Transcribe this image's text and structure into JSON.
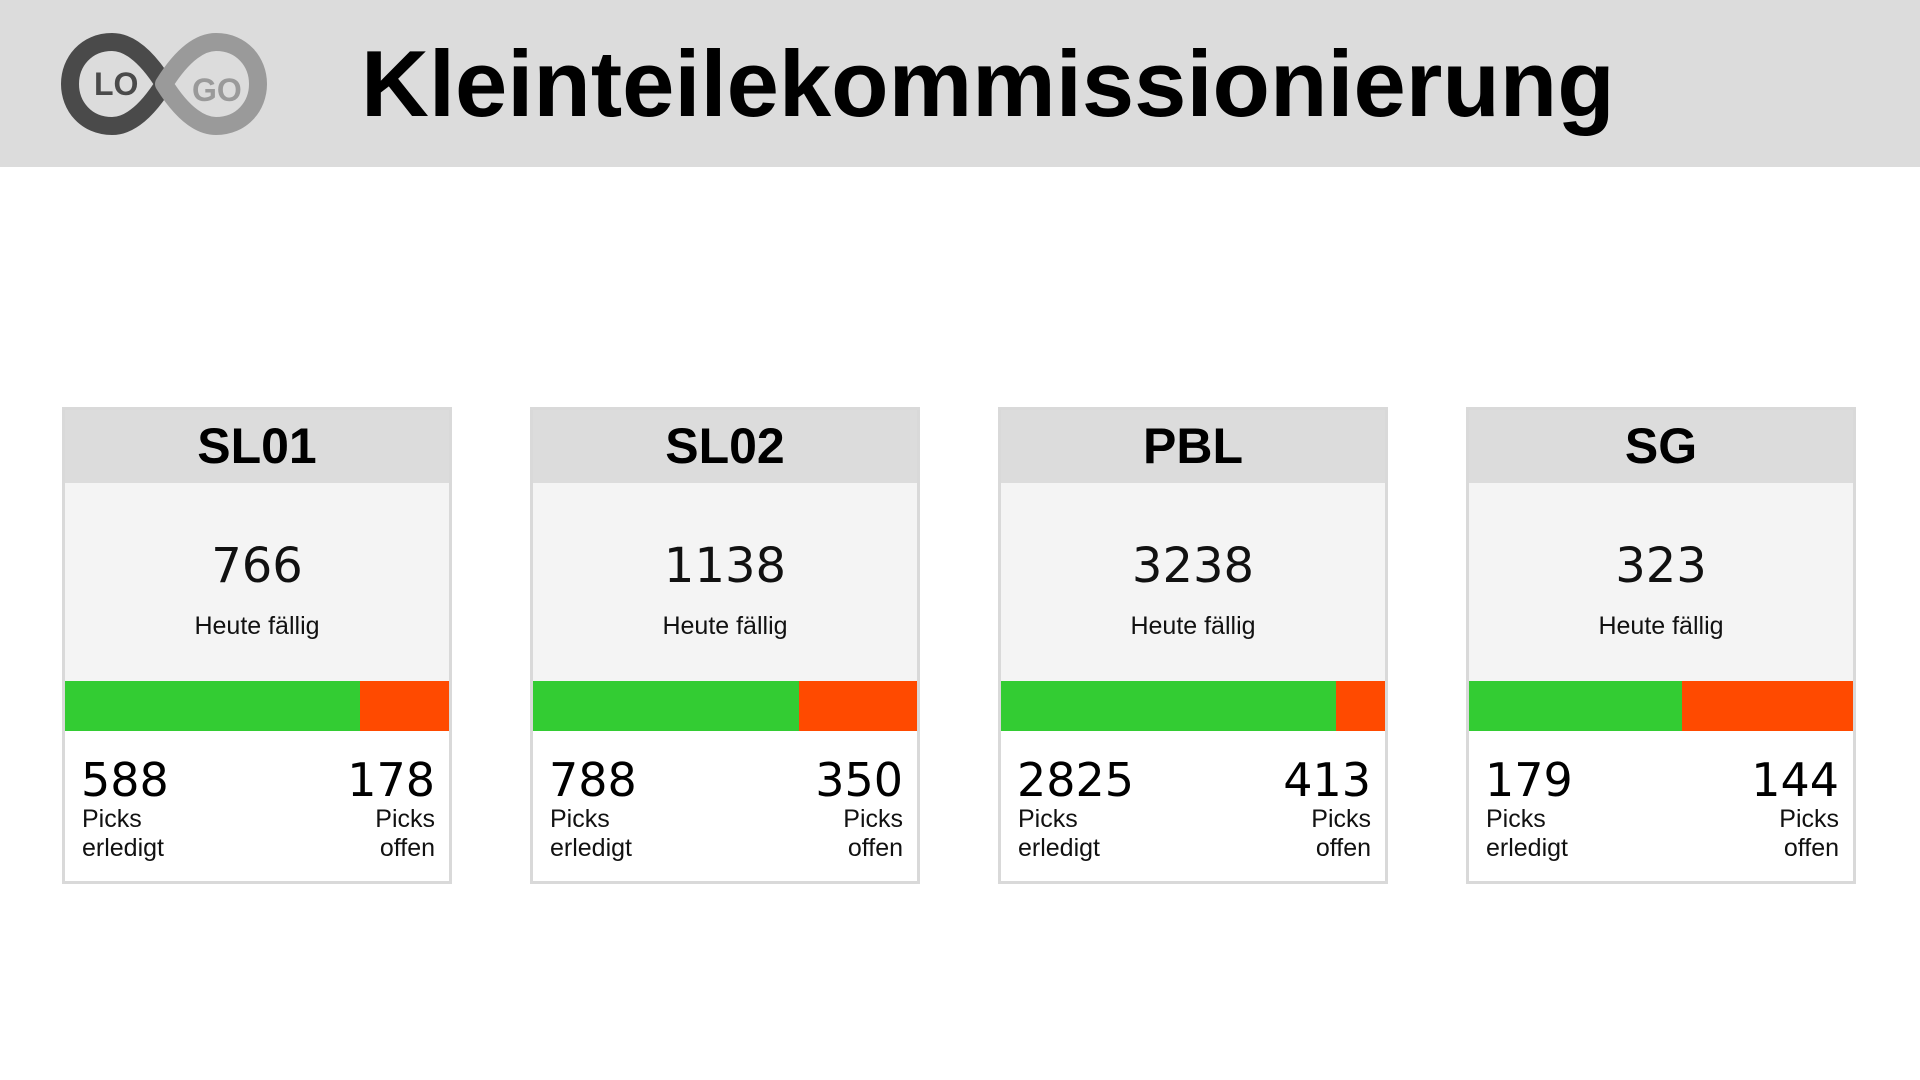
{
  "header": {
    "title": "Kleinteilekommissionierung",
    "logo": {
      "left_text": "LO",
      "right_text": "GO",
      "icon": "infinity-logo-icon"
    }
  },
  "colors": {
    "done": "#33cc33",
    "open": "#ff4a00",
    "header_bg": "#dcdcdc",
    "card_mid_bg": "#f4f4f4"
  },
  "cards": [
    {
      "name": "SL01",
      "due": "766",
      "due_label": "Heute fällig",
      "done": "588",
      "done_label": "Picks\nerledigt",
      "open": "178",
      "open_label": "Picks\noffen",
      "done_fraction": 0.768
    },
    {
      "name": "SL02",
      "due": "1138",
      "due_label": "Heute fällig",
      "done": "788",
      "done_label": "Picks\nerledigt",
      "open": "350",
      "open_label": "Picks\noffen",
      "done_fraction": 0.692
    },
    {
      "name": "PBL",
      "due": "3238",
      "due_label": "Heute fällig",
      "done": "2825",
      "done_label": "Picks\nerledigt",
      "open": "413",
      "open_label": "Picks\noffen",
      "done_fraction": 0.872
    },
    {
      "name": "SG",
      "due": "323",
      "due_label": "Heute fällig",
      "done": "179",
      "done_label": "Picks\nerledigt",
      "open": "144",
      "open_label": "Picks\noffen",
      "done_fraction": 0.554
    }
  ]
}
